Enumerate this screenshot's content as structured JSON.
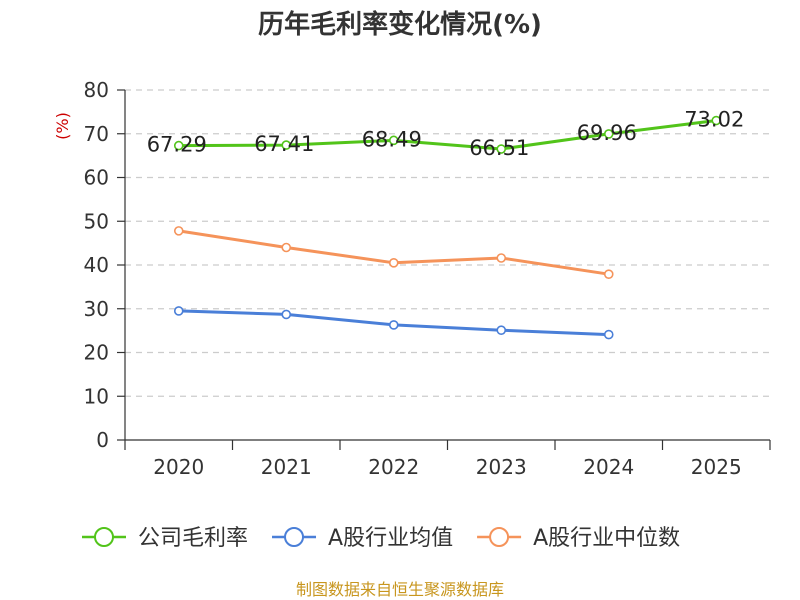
{
  "chart_data": {
    "type": "line",
    "title": "历年毛利率变化情况(%)",
    "ylabel": "(%)",
    "xlabel": "",
    "ylim": [
      0,
      80
    ],
    "yticks": [
      0,
      10,
      20,
      30,
      40,
      50,
      60,
      70,
      80
    ],
    "categories": [
      "2020",
      "2021",
      "2022",
      "2023",
      "2024",
      "2025"
    ],
    "grid": true,
    "legend_position": "bottom",
    "series": [
      {
        "name": "公司毛利率",
        "color": "#52c41a",
        "values": [
          67.29,
          67.41,
          68.49,
          66.51,
          69.96,
          73.02
        ],
        "labels": [
          "67.29",
          "67.41",
          "68.49",
          "66.51",
          "69.96",
          "73.02"
        ],
        "show_labels": true
      },
      {
        "name": "A股行业均值",
        "color": "#4a7fd8",
        "values": [
          29.5,
          28.7,
          26.3,
          25.1,
          24.1,
          null
        ],
        "show_labels": false
      },
      {
        "name": "A股行业中位数",
        "color": "#f5935a",
        "values": [
          47.8,
          44.0,
          40.5,
          41.6,
          37.9,
          null
        ],
        "show_labels": false
      }
    ],
    "source": "制图数据来自恒生聚源数据库"
  }
}
